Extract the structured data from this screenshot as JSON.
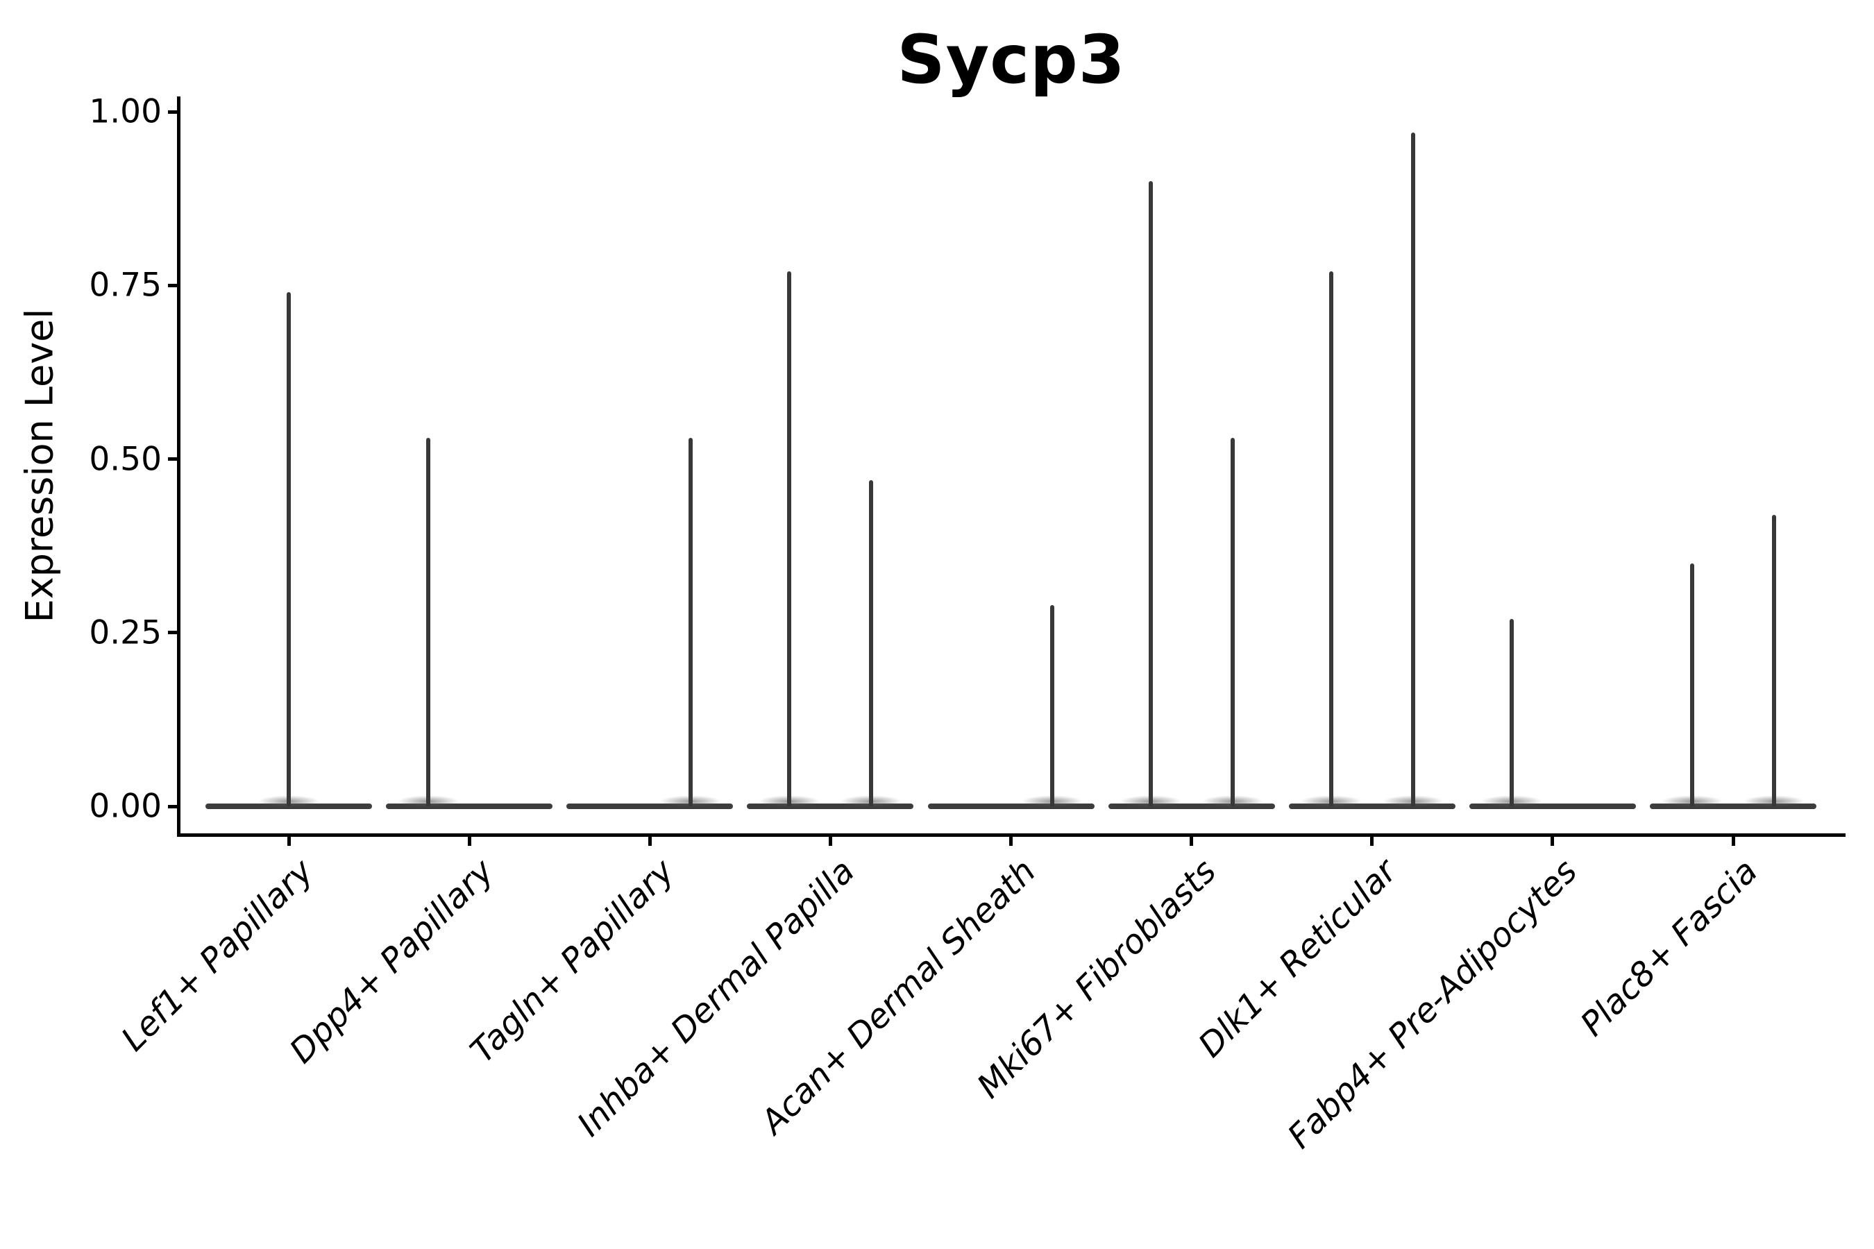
{
  "title": "Sycp3",
  "y_axis": {
    "label": "Expression Level",
    "tick_labels": [
      "1.00",
      "0.75",
      "0.50",
      "0.25",
      "0.00"
    ],
    "tick_values": [
      1.0,
      0.75,
      0.5,
      0.25,
      0.0
    ]
  },
  "x_axis": {
    "categories": [
      "Lef1+ Papillary",
      "Dpp4+ Papillary",
      "Tagln+ Papillary",
      "Inhba+ Dermal Papilla",
      "Acan+ Dermal Sheath",
      "Mki67+ Fibroblasts",
      "Dlk1+ Reticular",
      "Fabp4+ Pre-Adipocytes",
      "Plac8+ Fascia"
    ]
  },
  "colors": {
    "axis": "#000000",
    "violin": "#3d3d3d",
    "text": "#000000",
    "background": "#ffffff"
  },
  "chart_data": {
    "type": "violin",
    "title": "Sycp3",
    "xlabel": "",
    "ylabel": "Expression Level",
    "ylim": [
      0.0,
      1.0
    ],
    "yticks": [
      0.0,
      0.25,
      0.5,
      0.75,
      1.0
    ],
    "grid": false,
    "legend_position": "none",
    "baseline_value": 0.0,
    "categories": [
      "Lef1+ Papillary",
      "Dpp4+ Papillary",
      "Tagln+ Papillary",
      "Inhba+ Dermal Papilla",
      "Acan+ Dermal Sheath",
      "Mki67+ Fibroblasts",
      "Dlk1+ Reticular",
      "Fabp4+ Pre-Adipocytes",
      "Plac8+ Fascia"
    ],
    "violins": [
      {
        "category": "Lef1+ Papillary",
        "body_at_zero": true,
        "spikes": [
          {
            "position": "center",
            "max": 0.74
          }
        ]
      },
      {
        "category": "Dpp4+ Papillary",
        "body_at_zero": true,
        "spikes": [
          {
            "position": "left",
            "max": 0.53
          }
        ]
      },
      {
        "category": "Tagln+ Papillary",
        "body_at_zero": true,
        "spikes": [
          {
            "position": "right",
            "max": 0.53
          }
        ]
      },
      {
        "category": "Inhba+ Dermal Papilla",
        "body_at_zero": true,
        "spikes": [
          {
            "position": "left",
            "max": 0.77
          },
          {
            "position": "right",
            "max": 0.47
          }
        ]
      },
      {
        "category": "Acan+ Dermal Sheath",
        "body_at_zero": true,
        "spikes": [
          {
            "position": "right",
            "max": 0.29
          }
        ]
      },
      {
        "category": "Mki67+ Fibroblasts",
        "body_at_zero": true,
        "spikes": [
          {
            "position": "left",
            "max": 0.9
          },
          {
            "position": "right",
            "max": 0.53
          }
        ]
      },
      {
        "category": "Dlk1+ Reticular",
        "body_at_zero": true,
        "spikes": [
          {
            "position": "left",
            "max": 0.77
          },
          {
            "position": "right",
            "max": 0.97
          }
        ]
      },
      {
        "category": "Fabp4+ Pre-Adipocytes",
        "body_at_zero": true,
        "spikes": [
          {
            "position": "left",
            "max": 0.27
          }
        ]
      },
      {
        "category": "Plac8+ Fascia",
        "body_at_zero": true,
        "spikes": [
          {
            "position": "left",
            "max": 0.35
          },
          {
            "position": "right",
            "max": 0.42
          }
        ]
      }
    ]
  }
}
